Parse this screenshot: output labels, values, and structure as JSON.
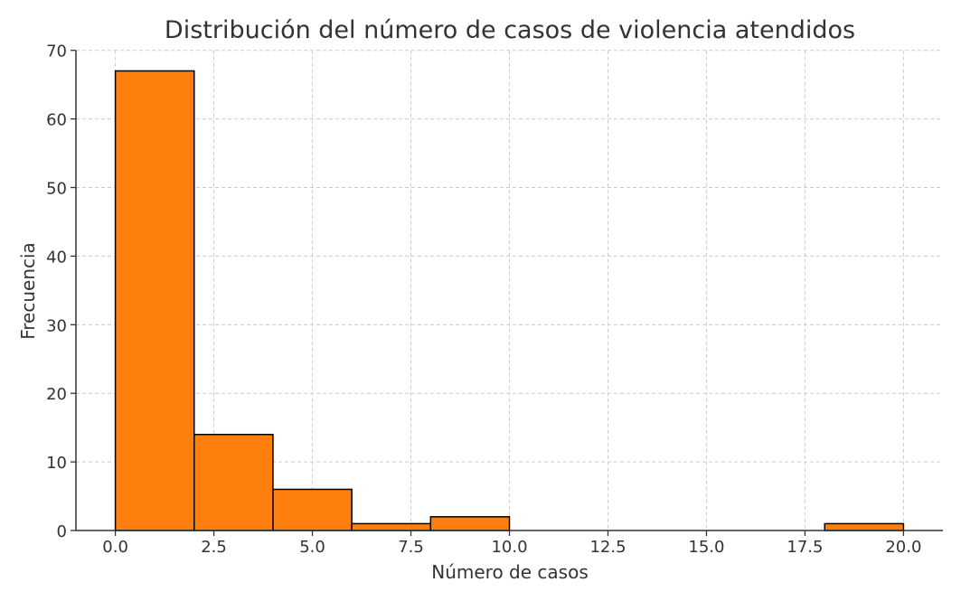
{
  "chart_data": {
    "type": "bar",
    "title": "Distribución del número de casos de violencia atendidos",
    "xlabel": "Número de casos",
    "ylabel": "Frecuencia",
    "bins": [
      [
        0,
        2
      ],
      [
        2,
        4
      ],
      [
        4,
        6
      ],
      [
        6,
        8
      ],
      [
        8,
        10
      ],
      [
        10,
        12
      ],
      [
        12,
        14
      ],
      [
        14,
        16
      ],
      [
        16,
        18
      ],
      [
        18,
        20
      ]
    ],
    "values": [
      67,
      14,
      6,
      1,
      2,
      0,
      0,
      0,
      0,
      1
    ],
    "xlim": [
      -1,
      21
    ],
    "ylim": [
      0,
      70
    ],
    "xticks": [
      "0.0",
      "2.5",
      "5.0",
      "7.5",
      "10.0",
      "12.5",
      "15.0",
      "17.5",
      "20.0"
    ],
    "yticks": [
      "0",
      "10",
      "20",
      "30",
      "40",
      "50",
      "60",
      "70"
    ],
    "grid": true,
    "bar_color": "#ff7f0e",
    "edge_color": "#000000"
  }
}
